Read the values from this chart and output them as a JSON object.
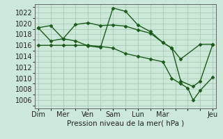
{
  "background_color": "#cce8d8",
  "grid_color": "#aaccb8",
  "line_color": "#1a5c1a",
  "marker_color": "#1a5c1a",
  "xlabel": "Pression niveau de la mer( hPa )",
  "ylim": [
    1004.5,
    1023.5
  ],
  "yticks": [
    1006,
    1008,
    1010,
    1012,
    1014,
    1016,
    1018,
    1020,
    1022
  ],
  "xtick_labels": [
    "Dim",
    "Mer",
    "Ven",
    "Sam",
    "Lun",
    "Mar",
    "",
    "Jeu"
  ],
  "xtick_positions": [
    0,
    14,
    28,
    42,
    56,
    70,
    84,
    98
  ],
  "xlim": [
    -2,
    100
  ],
  "series1_x": [
    0,
    7,
    14,
    21,
    28,
    35,
    42,
    49,
    56,
    63,
    70,
    75,
    80,
    91,
    98
  ],
  "series1_y": [
    1019.2,
    1019.6,
    1017.2,
    1019.8,
    1020.1,
    1019.6,
    1019.7,
    1019.5,
    1018.8,
    1018.2,
    1016.5,
    1015.5,
    1013.5,
    1016.2,
    1016.2
  ],
  "series2_x": [
    0,
    7,
    14,
    21,
    28,
    35,
    42,
    49,
    56,
    63,
    70,
    75,
    80,
    87,
    91,
    98
  ],
  "series2_y": [
    1019.2,
    1016.8,
    1017.2,
    1016.8,
    1015.9,
    1015.6,
    1022.8,
    1022.2,
    1019.7,
    1018.5,
    1016.5,
    1015.5,
    1009.5,
    1008.5,
    1009.5,
    1016.2
  ],
  "series3_x": [
    0,
    7,
    14,
    21,
    28,
    35,
    42,
    49,
    56,
    63,
    70,
    75,
    80,
    84,
    87,
    91,
    98
  ],
  "series3_y": [
    1016.0,
    1016.0,
    1016.0,
    1016.0,
    1016.0,
    1015.8,
    1015.5,
    1014.5,
    1014.0,
    1013.5,
    1013.0,
    1010.0,
    1009.0,
    1008.2,
    1006.0,
    1007.8,
    1010.2
  ],
  "xlabel_fontsize": 7.5,
  "tick_fontsize": 7,
  "linewidth": 1.0,
  "markersize": 2.5
}
